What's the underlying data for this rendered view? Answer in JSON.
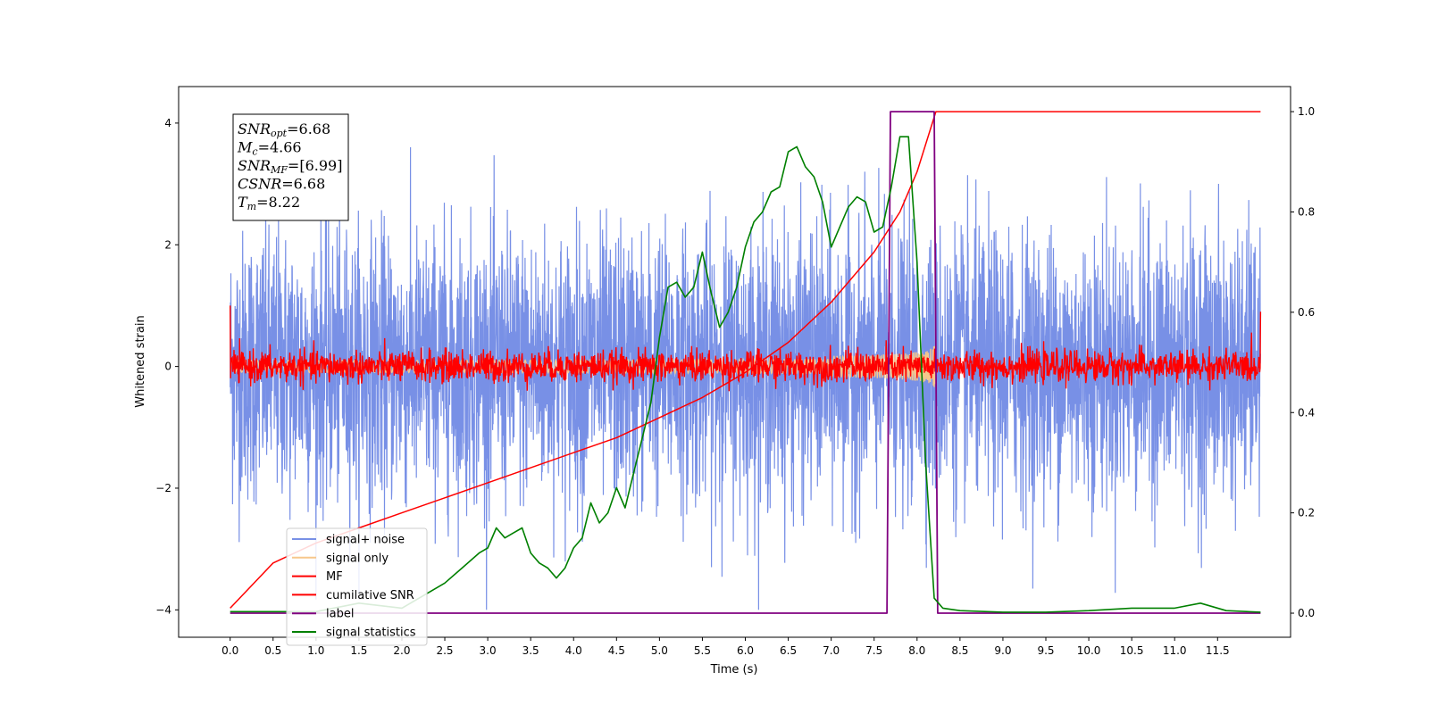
{
  "chart_data": {
    "type": "line",
    "xlabel": "Time (s)",
    "ylabel": "Whitened strain",
    "xlim": [
      -0.6,
      12.35
    ],
    "ylim_left": [
      -4.45,
      4.6
    ],
    "ylim_right": [
      -0.048,
      1.05
    ],
    "x_ticks": [
      "0.0",
      "0.5",
      "1.0",
      "1.5",
      "2.0",
      "2.5",
      "3.0",
      "3.5",
      "4.0",
      "4.5",
      "5.0",
      "5.5",
      "6.0",
      "6.5",
      "7.0",
      "7.5",
      "8.0",
      "8.5",
      "9.0",
      "9.5",
      "10.0",
      "10.5",
      "11.0",
      "11.5"
    ],
    "y_ticks_left": [
      "-4",
      "-2",
      "0",
      "2",
      "4"
    ],
    "y_ticks_right": [
      "0.0",
      "0.2",
      "0.4",
      "0.6",
      "0.8",
      "1.0"
    ],
    "annotation_lines": [
      {
        "name": "SNR",
        "sub": "opt",
        "value": "=6.68"
      },
      {
        "name": "M",
        "sub": "c",
        "value": "=4.66"
      },
      {
        "name": "SNR",
        "sub": "MF",
        "value": "=[6.99]"
      },
      {
        "name": "CSNR",
        "sub": "",
        "value": "=6.68"
      },
      {
        "name": "T",
        "sub": "m",
        "value": "=8.22"
      }
    ],
    "legend_position": "lower left",
    "series": [
      {
        "name": "signal+ noise",
        "color": "#7890e6",
        "axis": "left",
        "description_values": {
          "x_range": [
            0,
            12
          ],
          "amplitude_typical": 2.0,
          "peak": 4.1
        }
      },
      {
        "name": "signal only",
        "color": "#f7c78c",
        "axis": "left",
        "description_values": {
          "x_range": [
            0,
            8.22
          ],
          "peak_amplitude_near_merger": 0.4
        }
      },
      {
        "name": "MF",
        "color": "#ff0000",
        "axis": "left",
        "description_values": {
          "x_range": [
            0,
            12
          ],
          "amplitude_typical": 0.3
        }
      },
      {
        "name": "cumilative SNR",
        "color": "#ff0000",
        "axis": "right",
        "x": [
          0,
          0.5,
          1,
          1.5,
          2,
          2.5,
          3,
          3.5,
          4,
          4.5,
          5,
          5.5,
          6,
          6.5,
          7,
          7.5,
          7.8,
          8.0,
          8.22,
          12.0
        ],
        "y": [
          0.01,
          0.1,
          0.14,
          0.17,
          0.2,
          0.23,
          0.26,
          0.29,
          0.32,
          0.35,
          0.39,
          0.43,
          0.48,
          0.54,
          0.62,
          0.72,
          0.8,
          0.88,
          1.0,
          1.0
        ]
      },
      {
        "name": "label",
        "color": "#800080",
        "axis": "right",
        "x": [
          0,
          7.65,
          7.69,
          8.2,
          8.24,
          12.0
        ],
        "y": [
          0,
          0,
          1,
          1,
          0,
          0
        ]
      },
      {
        "name": "signal statistics",
        "color": "#008000",
        "axis": "right",
        "x": [
          0,
          0.5,
          1.0,
          1.5,
          2.0,
          2.3,
          2.5,
          2.7,
          2.9,
          3.0,
          3.1,
          3.2,
          3.3,
          3.4,
          3.5,
          3.6,
          3.7,
          3.8,
          3.9,
          4.0,
          4.1,
          4.2,
          4.3,
          4.4,
          4.5,
          4.6,
          4.7,
          4.8,
          4.9,
          5.0,
          5.1,
          5.2,
          5.3,
          5.4,
          5.5,
          5.6,
          5.7,
          5.8,
          5.9,
          6.0,
          6.1,
          6.2,
          6.3,
          6.4,
          6.5,
          6.6,
          6.7,
          6.8,
          6.9,
          7.0,
          7.1,
          7.2,
          7.3,
          7.4,
          7.5,
          7.6,
          7.7,
          7.8,
          7.9,
          8.0,
          8.1,
          8.2,
          8.3,
          8.5,
          9.0,
          9.5,
          10.0,
          10.5,
          11.0,
          11.3,
          11.6,
          12.0
        ],
        "y": [
          0.003,
          0.003,
          0.003,
          0.02,
          0.01,
          0.04,
          0.06,
          0.09,
          0.12,
          0.13,
          0.17,
          0.15,
          0.16,
          0.17,
          0.12,
          0.1,
          0.09,
          0.07,
          0.09,
          0.13,
          0.15,
          0.22,
          0.18,
          0.2,
          0.25,
          0.21,
          0.28,
          0.35,
          0.42,
          0.55,
          0.65,
          0.66,
          0.63,
          0.65,
          0.72,
          0.64,
          0.57,
          0.6,
          0.65,
          0.73,
          0.78,
          0.8,
          0.84,
          0.85,
          0.92,
          0.93,
          0.89,
          0.87,
          0.82,
          0.73,
          0.77,
          0.81,
          0.83,
          0.82,
          0.76,
          0.77,
          0.85,
          0.95,
          0.95,
          0.7,
          0.3,
          0.03,
          0.01,
          0.005,
          0.002,
          0.002,
          0.005,
          0.01,
          0.01,
          0.02,
          0.005,
          0.002
        ]
      }
    ]
  }
}
